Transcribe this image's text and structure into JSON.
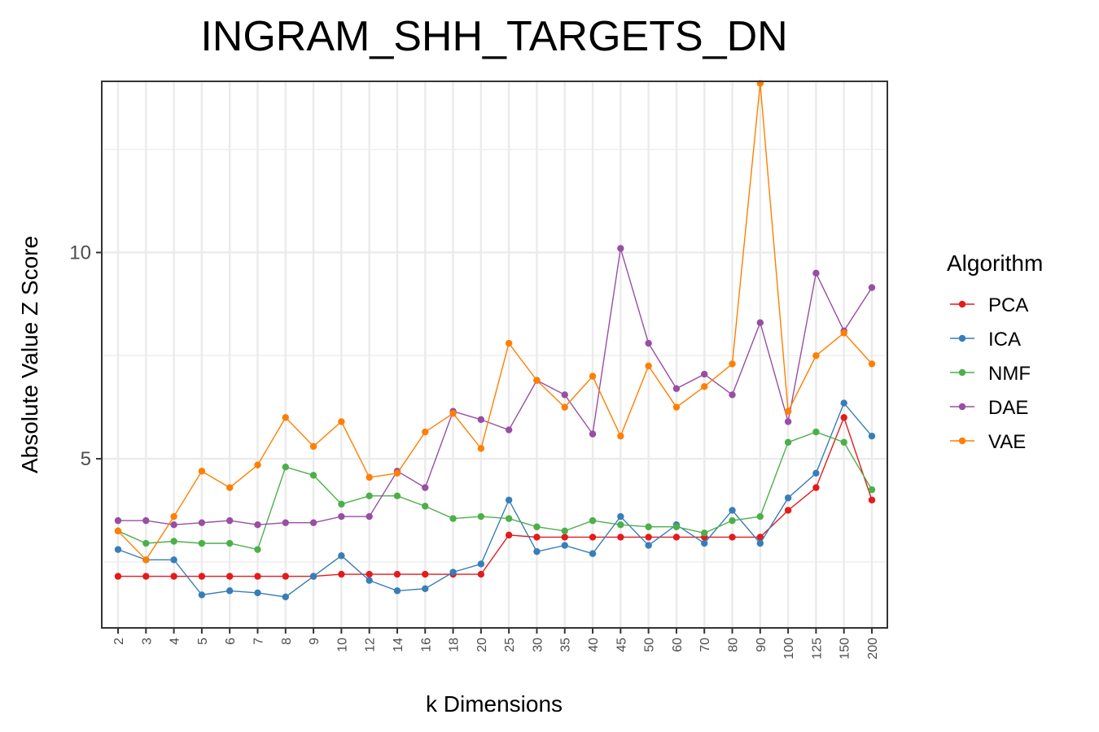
{
  "chart_data": {
    "type": "line",
    "title": "INGRAM_SHH_TARGETS_DN",
    "xlabel": "k Dimensions",
    "ylabel": "Absolute Value Z Score",
    "categories": [
      "2",
      "3",
      "4",
      "5",
      "6",
      "7",
      "8",
      "9",
      "10",
      "12",
      "14",
      "16",
      "18",
      "20",
      "25",
      "30",
      "35",
      "40",
      "45",
      "50",
      "60",
      "70",
      "80",
      "90",
      "100",
      "125",
      "150",
      "200"
    ],
    "yticks": [
      5,
      10
    ],
    "ylim": [
      0.9,
      14.15
    ],
    "grid": true,
    "legend": {
      "title": "Algorithm",
      "position": "right"
    },
    "series": [
      {
        "name": "PCA",
        "color": "#e41a1c",
        "values": [
          2.15,
          2.15,
          2.15,
          2.15,
          2.15,
          2.15,
          2.15,
          2.15,
          2.2,
          2.2,
          2.2,
          2.2,
          2.2,
          2.2,
          3.15,
          3.1,
          3.1,
          3.1,
          3.1,
          3.1,
          3.1,
          3.1,
          3.1,
          3.1,
          3.75,
          4.3,
          6.0,
          4.0
        ]
      },
      {
        "name": "ICA",
        "color": "#377eb8",
        "values": [
          2.8,
          2.55,
          2.55,
          1.7,
          1.8,
          1.75,
          1.65,
          2.15,
          2.65,
          2.05,
          1.8,
          1.85,
          2.25,
          2.45,
          4.0,
          2.75,
          2.9,
          2.7,
          3.6,
          2.9,
          3.4,
          2.95,
          3.75,
          2.95,
          4.05,
          4.65,
          6.35,
          5.55
        ]
      },
      {
        "name": "NMF",
        "color": "#4daf4a",
        "values": [
          3.25,
          2.95,
          3.0,
          2.95,
          2.95,
          2.8,
          4.8,
          4.6,
          3.9,
          4.1,
          4.1,
          3.85,
          3.55,
          3.6,
          3.55,
          3.35,
          3.25,
          3.5,
          3.4,
          3.35,
          3.35,
          3.2,
          3.5,
          3.6,
          5.4,
          5.65,
          5.4,
          4.25
        ]
      },
      {
        "name": "DAE",
        "color": "#984ea3",
        "values": [
          3.5,
          3.5,
          3.4,
          3.45,
          3.5,
          3.4,
          3.45,
          3.45,
          3.6,
          3.6,
          4.7,
          4.3,
          6.15,
          5.95,
          5.7,
          6.9,
          6.55,
          5.6,
          10.1,
          7.8,
          6.7,
          7.05,
          6.55,
          8.3,
          5.9,
          9.5,
          8.1,
          9.15
        ]
      },
      {
        "name": "VAE",
        "color": "#ff7f00",
        "values": [
          3.25,
          2.55,
          3.6,
          4.7,
          4.3,
          4.85,
          6.0,
          5.3,
          5.9,
          4.55,
          4.65,
          5.65,
          6.1,
          5.25,
          7.8,
          6.9,
          6.25,
          7.0,
          5.55,
          7.25,
          6.25,
          6.75,
          7.3,
          14.1,
          6.15,
          7.5,
          8.05,
          7.3
        ]
      }
    ]
  }
}
